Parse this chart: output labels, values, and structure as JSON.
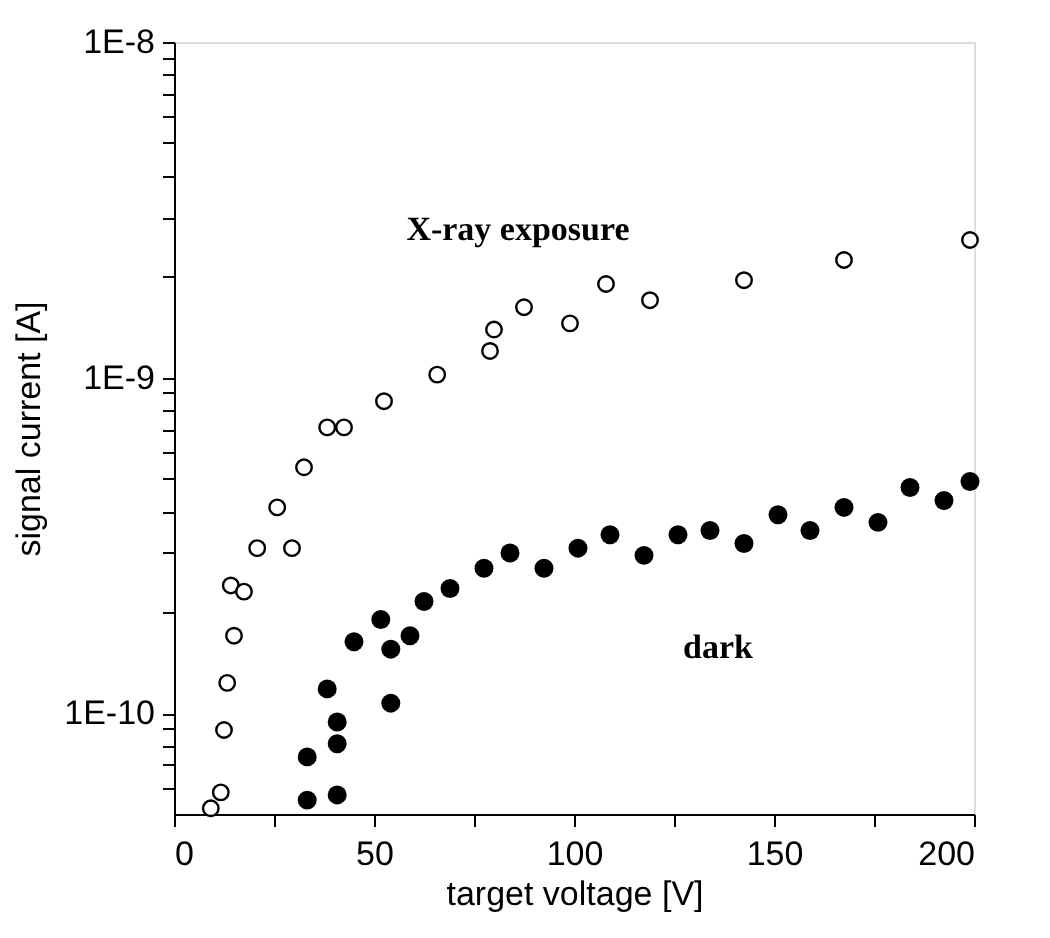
{
  "chart_data": {
    "type": "scatter",
    "xlabel": "target voltage [V]",
    "ylabel": "signal current [A]",
    "xlim": [
      0,
      200
    ],
    "ylim": [
      5e-11,
      1e-08
    ],
    "log": "y",
    "marker": "circle",
    "grid": false,
    "legend": false,
    "xticks": [
      0,
      {
        "value": 25,
        "label": null
      },
      50,
      {
        "value": 75,
        "label": null
      },
      100,
      {
        "value": 125,
        "label": null
      },
      150,
      {
        "value": 175,
        "label": null
      },
      200
    ],
    "yticks": [
      {
        "value": 6e-11,
        "label": null
      },
      {
        "value": 7e-11,
        "label": null
      },
      {
        "value": 8e-11,
        "label": null
      },
      {
        "value": 9e-11,
        "label": null
      },
      {
        "value": 1e-10,
        "label": "1E-10"
      },
      {
        "value": 2e-10,
        "label": null
      },
      {
        "value": 3e-10,
        "label": null
      },
      {
        "value": 4e-10,
        "label": null
      },
      {
        "value": 5e-10,
        "label": null
      },
      {
        "value": 6e-10,
        "label": null
      },
      {
        "value": 7e-10,
        "label": null
      },
      {
        "value": 8e-10,
        "label": null
      },
      {
        "value": 9e-10,
        "label": null
      },
      {
        "value": 1e-09,
        "label": "1E-9"
      },
      {
        "value": 2e-09,
        "label": null
      },
      {
        "value": 3e-09,
        "label": null
      },
      {
        "value": 4e-09,
        "label": null
      },
      {
        "value": 5e-09,
        "label": null
      },
      {
        "value": 6e-09,
        "label": null
      },
      {
        "value": 7e-09,
        "label": null
      },
      {
        "value": 8e-09,
        "label": null
      },
      {
        "value": 9e-09,
        "label": null
      },
      {
        "value": 1e-08,
        "label": "1E-8"
      }
    ],
    "series": [
      {
        "name": "X-ray exposure",
        "color": "#000000",
        "x": [
          9.2,
          11.7,
          12.5,
          13.3,
          14.2,
          15,
          17.5,
          20.8,
          25.8,
          29.5,
          32.5,
          38.3,
          42.5,
          52.5,
          65.8,
          79,
          80,
          87.5,
          99,
          108,
          119,
          142.5,
          167.5,
          199
        ],
        "values": [
          5.2e-11,
          5.8e-11,
          8.9e-11,
          1.23e-10,
          2.4e-10,
          1.7e-10,
          2.3e-10,
          3.1e-10,
          4.1e-10,
          3.1e-10,
          5.4e-10,
          7.1e-10,
          7.1e-10,
          8.5e-10,
          1.02e-09,
          1.2e-09,
          1.39e-09,
          1.62e-09,
          1.45e-09,
          1.9e-09,
          1.7e-09,
          1.95e-09,
          2.24e-09,
          2.57e-09
        ]
      },
      {
        "name": "dark",
        "color": "#000000",
        "x": [
          33.3,
          33.3,
          38.3,
          40.8,
          40.8,
          40.8,
          45,
          51.7,
          54.2,
          54.2,
          59,
          62.5,
          69,
          77.5,
          84,
          92.5,
          101,
          109,
          117.5,
          126,
          134,
          142.5,
          151,
          159,
          167.5,
          176,
          184,
          192.5,
          199
        ],
        "values": [
          5.5e-11,
          7.4e-11,
          1.18e-10,
          8.1e-11,
          5.7e-11,
          9.4e-11,
          1.63e-10,
          1.9e-10,
          1.07e-10,
          1.55e-10,
          1.7e-10,
          2.15e-10,
          2.35e-10,
          2.7e-10,
          3e-10,
          2.7e-10,
          3.1e-10,
          3.4e-10,
          2.95e-10,
          3.4e-10,
          3.5e-10,
          3.2e-10,
          3.9e-10,
          3.5e-10,
          4.1e-10,
          3.7e-10,
          4.7e-10,
          4.3e-10,
          4.9e-10
        ]
      }
    ]
  }
}
